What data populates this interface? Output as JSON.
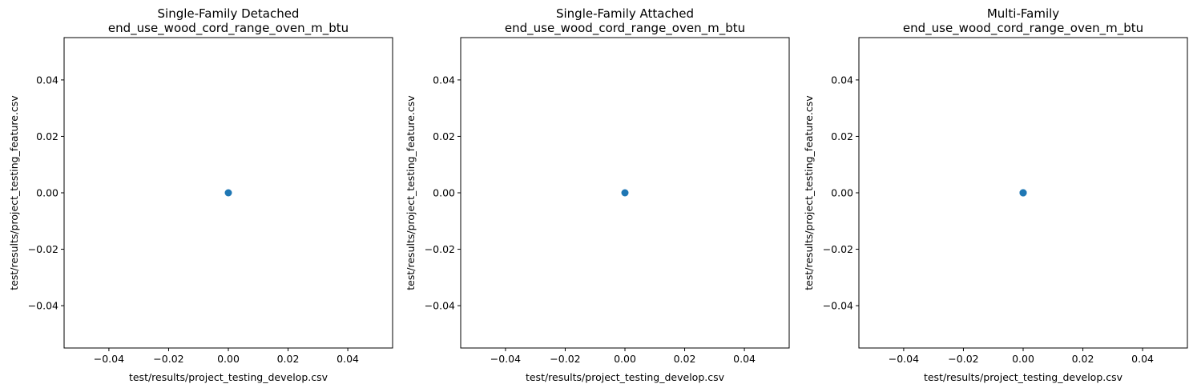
{
  "chart_data": [
    {
      "type": "scatter",
      "title": "Single-Family Detached",
      "subtitle": "end_use_wood_cord_range_oven_m_btu",
      "xlabel": "test/results/project_testing_develop.csv",
      "ylabel": "test/results/project_testing_feature.csv",
      "xlim": [
        -0.055,
        0.055
      ],
      "ylim": [
        -0.055,
        0.055
      ],
      "xticks": [
        "−0.04",
        "−0.02",
        "0.00",
        "0.02",
        "0.04"
      ],
      "yticks": [
        "−0.04",
        "−0.02",
        "0.00",
        "0.02",
        "0.04"
      ],
      "x": [
        0.0
      ],
      "y": [
        0.0
      ],
      "color": "#1f77b4",
      "grid": false
    },
    {
      "type": "scatter",
      "title": "Single-Family Attached",
      "subtitle": "end_use_wood_cord_range_oven_m_btu",
      "xlabel": "test/results/project_testing_develop.csv",
      "ylabel": "test/results/project_testing_feature.csv",
      "xlim": [
        -0.055,
        0.055
      ],
      "ylim": [
        -0.055,
        0.055
      ],
      "xticks": [
        "−0.04",
        "−0.02",
        "0.00",
        "0.02",
        "0.04"
      ],
      "yticks": [
        "−0.04",
        "−0.02",
        "0.00",
        "0.02",
        "0.04"
      ],
      "x": [
        0.0
      ],
      "y": [
        0.0
      ],
      "color": "#1f77b4",
      "grid": false
    },
    {
      "type": "scatter",
      "title": "Multi-Family",
      "subtitle": "end_use_wood_cord_range_oven_m_btu",
      "xlabel": "test/results/project_testing_develop.csv",
      "ylabel": "test/results/project_testing_feature.csv",
      "xlim": [
        -0.055,
        0.055
      ],
      "ylim": [
        -0.055,
        0.055
      ],
      "xticks": [
        "−0.04",
        "−0.02",
        "0.00",
        "0.02",
        "0.04"
      ],
      "yticks": [
        "−0.04",
        "−0.02",
        "0.00",
        "0.02",
        "0.04"
      ],
      "x": [
        0.0,
        0.0,
        0.0
      ],
      "y": [
        0.0,
        0.0,
        0.0
      ],
      "color": "#1f77b4",
      "grid": false
    }
  ]
}
